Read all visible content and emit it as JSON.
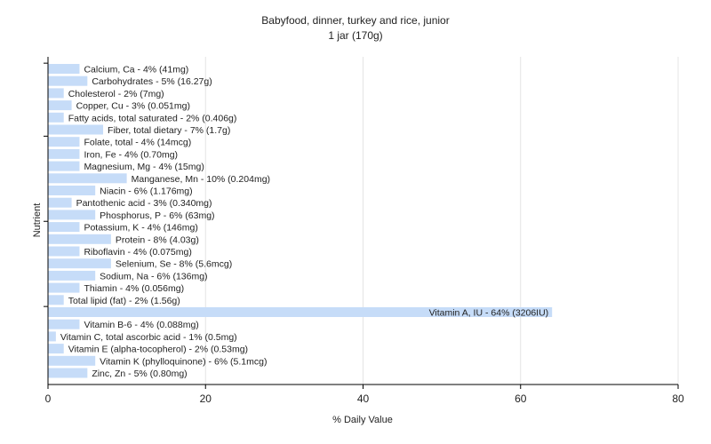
{
  "chart_data": {
    "type": "bar",
    "orientation": "horizontal",
    "title": "Babyfood, dinner, turkey and rice, junior",
    "subtitle": "1 jar (170g)",
    "xlabel": "% Daily Value",
    "ylabel": "Nutrient",
    "xlim": [
      0,
      80
    ],
    "xticks": [
      0,
      20,
      40,
      60,
      80
    ],
    "grid": true,
    "bar_color": "#c6dcf8",
    "grid_color": "#e4e4e4",
    "categories": [
      "Calcium, Ca",
      "Carbohydrates",
      "Cholesterol",
      "Copper, Cu",
      "Fatty acids, total saturated",
      "Fiber, total dietary",
      "Folate, total",
      "Iron, Fe",
      "Magnesium, Mg",
      "Manganese, Mn",
      "Niacin",
      "Pantothenic acid",
      "Phosphorus, P",
      "Potassium, K",
      "Protein",
      "Riboflavin",
      "Selenium, Se",
      "Sodium, Na",
      "Thiamin",
      "Total lipid (fat)",
      "Vitamin A, IU",
      "Vitamin B-6",
      "Vitamin C, total ascorbic acid",
      "Vitamin E (alpha-tocopherol)",
      "Vitamin K (phylloquinone)",
      "Zinc, Zn"
    ],
    "values": [
      4,
      5,
      2,
      3,
      2,
      7,
      4,
      4,
      4,
      10,
      6,
      3,
      6,
      4,
      8,
      4,
      8,
      6,
      4,
      2,
      64,
      4,
      1,
      2,
      6,
      5
    ],
    "labels": [
      "Calcium, Ca - 4% (41mg)",
      "Carbohydrates - 5% (16.27g)",
      "Cholesterol - 2% (7mg)",
      "Copper, Cu - 3% (0.051mg)",
      "Fatty acids, total saturated - 2% (0.406g)",
      "Fiber, total dietary - 7% (1.7g)",
      "Folate, total - 4% (14mcg)",
      "Iron, Fe - 4% (0.70mg)",
      "Magnesium, Mg - 4% (15mg)",
      "Manganese, Mn - 10% (0.204mg)",
      "Niacin - 6% (1.176mg)",
      "Pantothenic acid - 3% (0.340mg)",
      "Phosphorus, P - 6% (63mg)",
      "Potassium, K - 4% (146mg)",
      "Protein - 8% (4.03g)",
      "Riboflavin - 4% (0.075mg)",
      "Selenium, Se - 8% (5.6mcg)",
      "Sodium, Na - 6% (136mg)",
      "Thiamin - 4% (0.056mg)",
      "Total lipid (fat) - 2% (1.56g)",
      "Vitamin A, IU - 64% (3206IU)",
      "Vitamin B-6 - 4% (0.088mg)",
      "Vitamin C, total ascorbic acid - 1% (0.5mg)",
      "Vitamin E (alpha-tocopherol) - 2% (0.53mg)",
      "Vitamin K (phylloquinone) - 6% (5.1mcg)",
      "Zinc, Zn - 5% (0.80mg)"
    ]
  }
}
